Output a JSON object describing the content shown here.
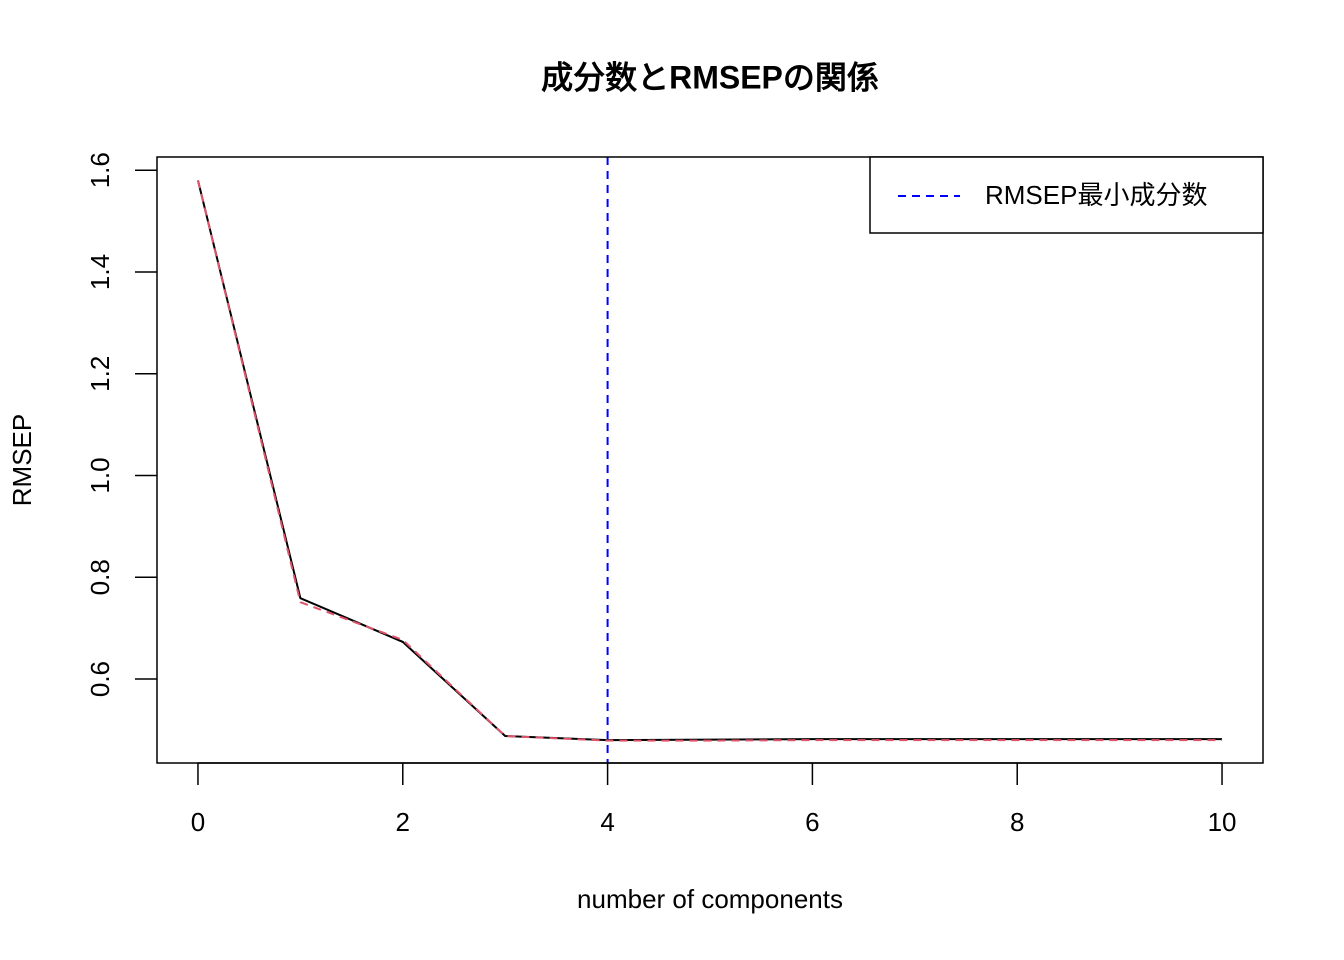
{
  "chart_data": {
    "type": "line",
    "title": "成分数とRMSEPの関係",
    "x_label": "number of components",
    "y_label": "RMSEP",
    "x": [
      0,
      1,
      2,
      3,
      4,
      5,
      6,
      7,
      8,
      9,
      10
    ],
    "series": [
      {
        "color": "#000000",
        "dash": "solid",
        "values": [
          1.58,
          0.759,
          0.673,
          0.488,
          0.48,
          0.481,
          0.482,
          0.482,
          0.482,
          0.482,
          0.482
        ]
      },
      {
        "color": "#DF536B",
        "dash": "dashed",
        "values": [
          1.58,
          0.751,
          0.677,
          0.488,
          0.479,
          0.479,
          0.48,
          0.48,
          0.48,
          0.48,
          0.48
        ]
      }
    ],
    "vline": {
      "x": 4,
      "label": "RMSEP最小成分数",
      "color": "#0000FF",
      "dash": "dashed"
    },
    "legend": "top-right",
    "xlim": [
      -0.4,
      10.4
    ],
    "ylim": [
      0.435,
      1.626
    ],
    "xticks": [
      0,
      2,
      4,
      6,
      8,
      10
    ],
    "yticks": [
      0.6,
      0.8,
      {
        "value": 1,
        "label": "1.0"
      },
      1.2,
      1.4,
      1.6
    ]
  }
}
